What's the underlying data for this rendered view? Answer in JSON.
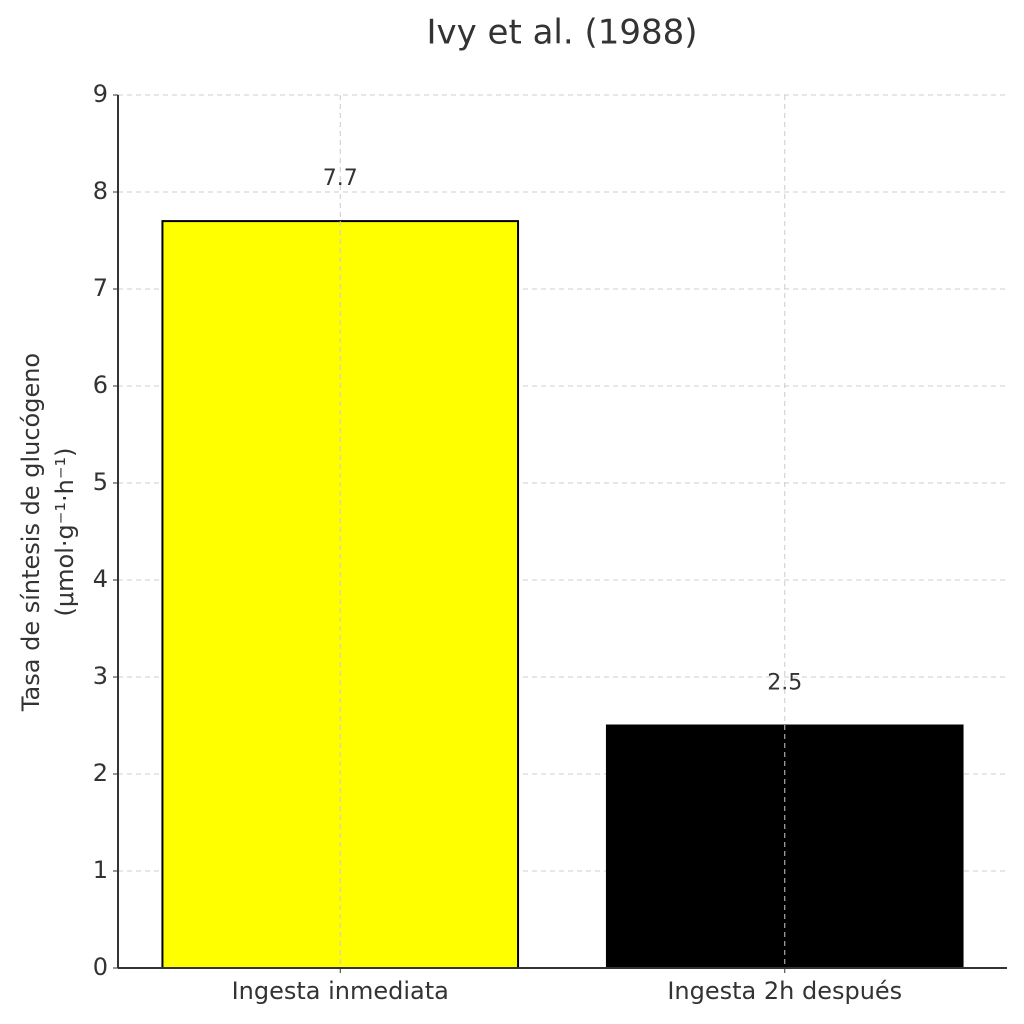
{
  "chart_data": {
    "type": "bar",
    "title": "Ivy et al. (1988)",
    "ylabel": [
      "Tasa de síntesis de glucógeno",
      "(μmol·g⁻¹·h⁻¹)"
    ],
    "categories": [
      "Ingesta inmediata",
      "Ingesta 2h después"
    ],
    "values": [
      7.7,
      2.5
    ],
    "colors": [
      "#ffff00",
      "#000000"
    ],
    "edgecolor": "#000000",
    "ylim": [
      0,
      9
    ],
    "yticks": [
      0,
      1,
      2,
      3,
      4,
      5,
      6,
      7,
      8,
      9
    ],
    "grid": true
  }
}
